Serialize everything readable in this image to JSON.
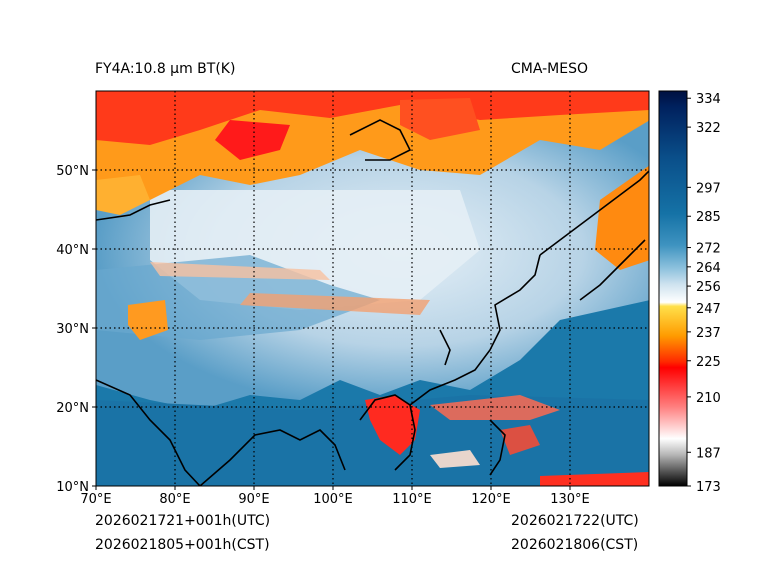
{
  "title_left": "FY4A:10.8 μm BT(K)",
  "title_right": "CMA-MESO",
  "footer": {
    "left_line1": "2026021721+001h(UTC)",
    "left_line2": "2026021805+001h(CST)",
    "right_line1": "2026021722(UTC)",
    "right_line2": "2026021806(CST)"
  },
  "map": {
    "lon_range": [
      70,
      140
    ],
    "lat_range": [
      10,
      60
    ],
    "lon_ticks": [
      {
        "value": 70,
        "label": "70°E"
      },
      {
        "value": 80,
        "label": "80°E"
      },
      {
        "value": 90,
        "label": "90°E"
      },
      {
        "value": 100,
        "label": "100°E"
      },
      {
        "value": 110,
        "label": "110°E"
      },
      {
        "value": 120,
        "label": "120°E"
      },
      {
        "value": 130,
        "label": "130°E"
      }
    ],
    "lat_ticks": [
      {
        "value": 10,
        "label": "10°N"
      },
      {
        "value": 20,
        "label": "20°N"
      },
      {
        "value": 30,
        "label": "30°N"
      },
      {
        "value": 40,
        "label": "40°N"
      },
      {
        "value": 50,
        "label": "50°N"
      }
    ],
    "grid_lons": [
      80,
      90,
      100,
      110,
      120,
      130
    ],
    "grid_lats": [
      20,
      30,
      40,
      50
    ]
  },
  "colorbar": {
    "range": [
      173,
      337
    ],
    "ticks": [
      {
        "value": 334,
        "label": "334"
      },
      {
        "value": 322,
        "label": "322"
      },
      {
        "value": 297,
        "label": "297"
      },
      {
        "value": 285,
        "label": "285"
      },
      {
        "value": 272,
        "label": "272"
      },
      {
        "value": 264,
        "label": "264"
      },
      {
        "value": 256,
        "label": "256"
      },
      {
        "value": 247,
        "label": "247"
      },
      {
        "value": 237,
        "label": "237"
      },
      {
        "value": 225,
        "label": "225"
      },
      {
        "value": 210,
        "label": "210"
      },
      {
        "value": 187,
        "label": "187"
      },
      {
        "value": 173,
        "label": "173"
      }
    ]
  },
  "colors": {
    "cold_cloud": "#ff1a1a",
    "mid_cloud": "#ff9a00",
    "high_warm_cloud": "#f5d000",
    "clear_land": "#d8e8f2",
    "clear_ocean": "#1a77a8",
    "deep_ocean": "#001b55",
    "coastline": "#000000"
  }
}
